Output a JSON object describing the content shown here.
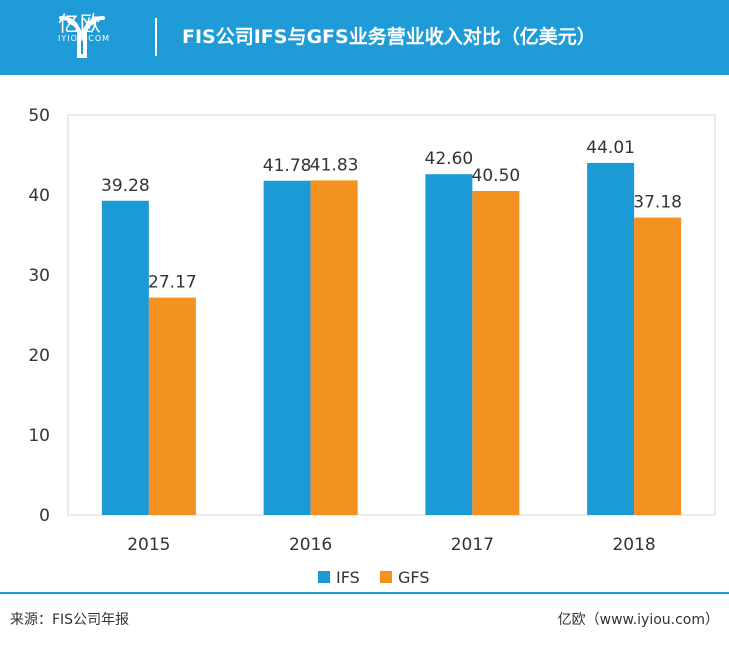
{
  "header": {
    "logo_text": "亿欧",
    "logo_sub": "IYIOU·COM",
    "title": "FIS公司IFS与GFS业务营业收入对比（亿美元）"
  },
  "colors": {
    "brand": "#1f9bd7",
    "ifs": "#1b9ad6",
    "gfs": "#f39121"
  },
  "chart_data": {
    "type": "bar",
    "categories": [
      "2015",
      "2016",
      "2017",
      "2018"
    ],
    "series": [
      {
        "name": "IFS",
        "values": [
          39.28,
          41.78,
          42.6,
          44.01
        ],
        "labels": [
          "39.28",
          "41.78",
          "42.60",
          "44.01"
        ]
      },
      {
        "name": "GFS",
        "values": [
          27.17,
          41.83,
          40.5,
          37.18
        ],
        "labels": [
          "27.17",
          "41.83",
          "40.50",
          "37.18"
        ]
      }
    ],
    "ylim": [
      0,
      50
    ],
    "yticks": [
      0,
      10,
      20,
      30,
      40,
      50
    ],
    "grid": false,
    "legend_position": "bottom-center"
  },
  "footer": {
    "source": "来源：FIS公司年报",
    "credit": "亿欧（www.iyiou.com）"
  }
}
